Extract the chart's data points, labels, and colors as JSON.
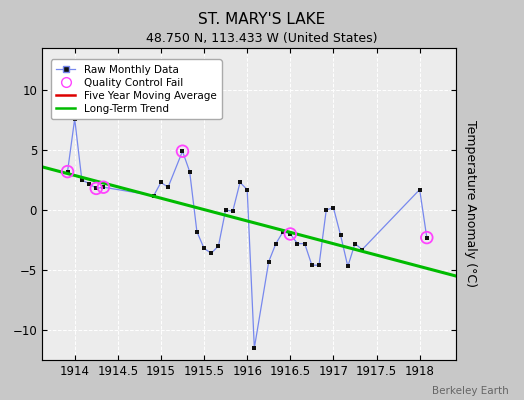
{
  "title": "ST. MARY'S LAKE",
  "subtitle": "48.750 N, 113.433 W (United States)",
  "ylabel": "Temperature Anomaly (°C)",
  "credit": "Berkeley Earth",
  "xlim": [
    1913.62,
    1918.42
  ],
  "ylim": [
    -12.5,
    13.5
  ],
  "yticks": [
    -10,
    -5,
    0,
    5,
    10
  ],
  "xticks": [
    1914,
    1914.5,
    1915,
    1915.5,
    1916,
    1916.5,
    1917,
    1917.5,
    1918
  ],
  "background_color": "#c8c8c8",
  "plot_background": "#ececec",
  "raw_x": [
    1913.917,
    1914.0,
    1914.083,
    1914.167,
    1914.25,
    1914.333,
    1914.917,
    1915.0,
    1915.083,
    1915.25,
    1915.333,
    1915.417,
    1915.5,
    1915.583,
    1915.667,
    1915.75,
    1915.833,
    1915.917,
    1916.0,
    1916.083,
    1916.25,
    1916.333,
    1916.417,
    1916.5,
    1916.583,
    1916.667,
    1916.75,
    1916.833,
    1916.917,
    1917.0,
    1917.083,
    1917.167,
    1917.25,
    1917.333,
    1918.0,
    1918.083
  ],
  "raw_y": [
    3.2,
    7.6,
    2.5,
    2.2,
    1.8,
    1.9,
    1.2,
    2.3,
    1.9,
    4.9,
    3.2,
    -1.8,
    -3.2,
    -3.6,
    -3.0,
    0.0,
    -0.1,
    2.3,
    1.7,
    -11.5,
    -4.3,
    -2.8,
    -1.8,
    -2.0,
    -2.8,
    -2.8,
    -4.6,
    -4.6,
    0.0,
    0.2,
    -2.1,
    -4.7,
    -2.8,
    -3.3,
    1.7,
    -2.3
  ],
  "qc_x": [
    1913.917,
    1914.25,
    1914.333,
    1915.25,
    1916.5,
    1918.083
  ],
  "qc_y": [
    3.2,
    1.8,
    1.9,
    4.9,
    -2.0,
    -2.3
  ],
  "trend_x": [
    1913.62,
    1918.42
  ],
  "trend_y": [
    3.6,
    -5.5
  ],
  "line_color": "#7788ee",
  "marker_color": "#111111",
  "qc_color": "#ff44ff",
  "trend_color": "#00bb00",
  "moving_avg_color": "#dd0000",
  "grid_color": "#ffffff",
  "spine_color": "#888888"
}
